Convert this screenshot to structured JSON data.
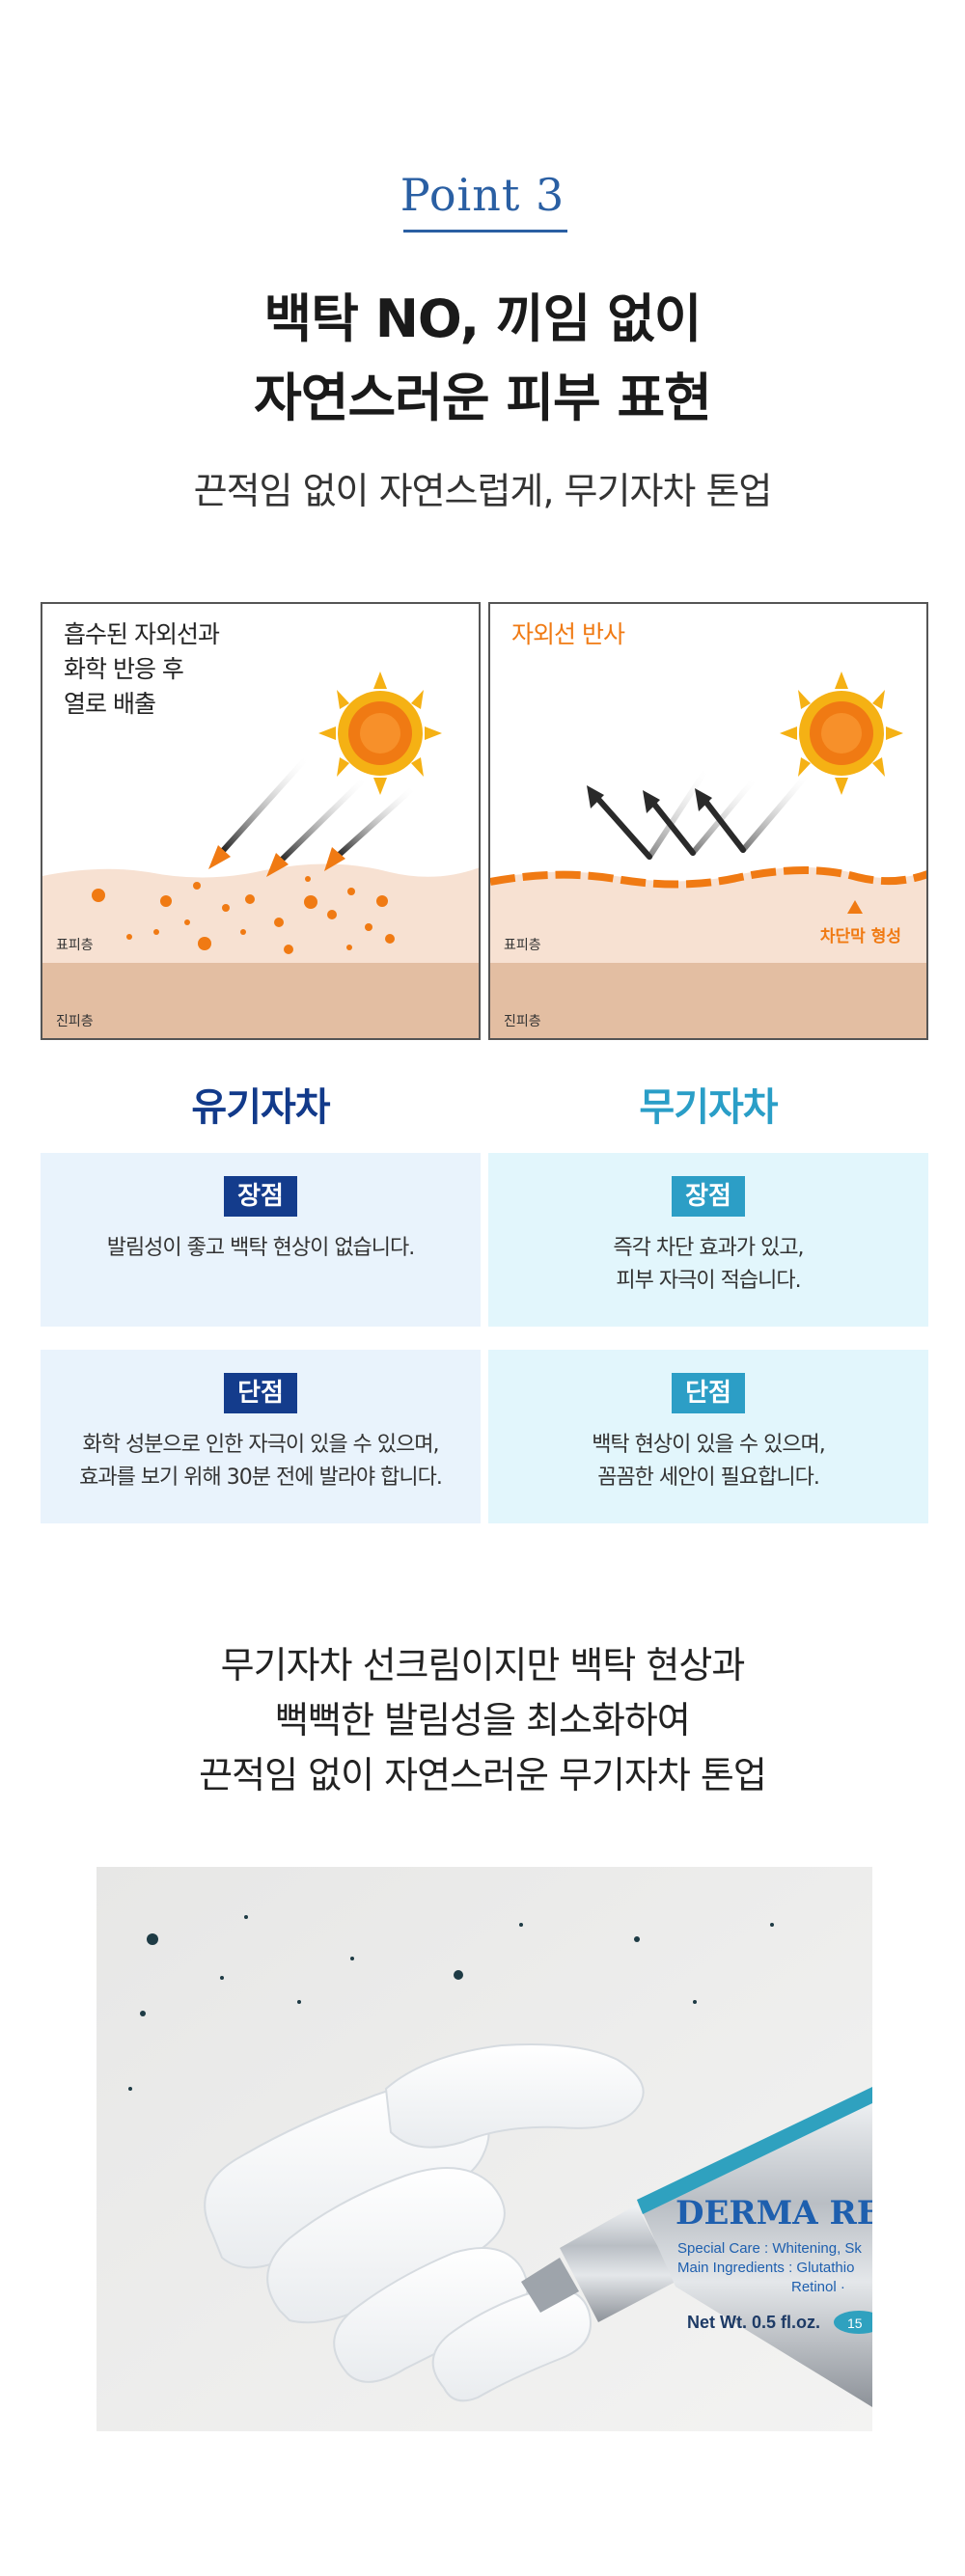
{
  "header": {
    "point_label": "Point 3",
    "headline_line1": "백탁 NO, 끼임 없이",
    "headline_line2": "자연스러운 피부 표현",
    "subtitle": "끈적임 없이 자연스럽게, 무기자차 톤업"
  },
  "diagrams": {
    "organic": {
      "caption": "흡수된 자외선과\n화학 반응 후\n열로 배출",
      "epidermis_label": "표피층",
      "dermis_label": "진피층"
    },
    "inorganic": {
      "caption": "자외선 반사",
      "epidermis_label": "표피층",
      "dermis_label": "진피층",
      "barrier_label": "차단막 형성"
    }
  },
  "comparison": {
    "organic": {
      "title": "유기자차",
      "pros_badge": "장점",
      "pros_text": "발림성이 좋고 백탁 현상이 없습니다.",
      "cons_badge": "단점",
      "cons_text": "화학 성분으로 인한 자극이 있을 수 있으며,\n효과를 보기 위해 30분 전에 발라야 합니다."
    },
    "inorganic": {
      "title": "무기자차",
      "pros_badge": "장점",
      "pros_text": "즉각 차단 효과가 있고,\n피부 자극이 적습니다.",
      "cons_badge": "단점",
      "cons_text": "백탁 현상이 있을 수 있으며,\n꼼꼼한 세안이 필요합니다."
    }
  },
  "closing": {
    "text": "무기자차 선크림이지만 백탁 현상과\n뻑뻑한 발림성을 최소화하여\n끈적임 없이 자연스러운 무기자차 톤업"
  },
  "product_photo": {
    "brand": "DERMA RE",
    "line1": "Special Care : Whitening, Sk",
    "line2": "Main Ingredients : Glutathio",
    "line3": "Retinol · ",
    "net_wt": "Net Wt. 0.5 fl.oz.",
    "badge": "15"
  },
  "colors": {
    "accent_blue": "#2a5fa3",
    "navy": "#143c8c",
    "cyan": "#2c9ec6",
    "orange": "#f07a13",
    "skin_light": "#f7e1d2",
    "skin_dark": "#e3bea2"
  }
}
